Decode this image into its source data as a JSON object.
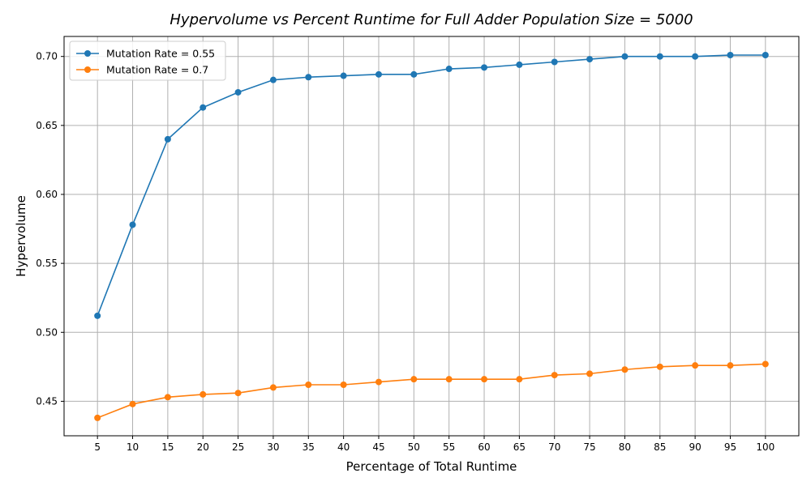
{
  "chart_data": {
    "type": "line",
    "title": "Hypervolume vs Percent Runtime for Full Adder Population Size = 5000",
    "xlabel": "Percentage of Total Runtime",
    "ylabel": "Hypervolume",
    "x": [
      5,
      10,
      15,
      20,
      25,
      30,
      35,
      40,
      45,
      50,
      55,
      60,
      65,
      70,
      75,
      80,
      85,
      90,
      95,
      100
    ],
    "x_tick_labels": [
      "5",
      "10",
      "15",
      "20",
      "25",
      "30",
      "35",
      "40",
      "45",
      "50",
      "55",
      "60",
      "65",
      "70",
      "75",
      "80",
      "85",
      "90",
      "95",
      "100"
    ],
    "y_ticks": [
      0.45,
      0.5,
      0.55,
      0.6,
      0.65,
      0.7
    ],
    "y_tick_labels": [
      "0.45",
      "0.50",
      "0.55",
      "0.60",
      "0.65",
      "0.70"
    ],
    "xlim": [
      0.25,
      104.75
    ],
    "ylim": [
      0.425,
      0.7145
    ],
    "grid": true,
    "legend_position": "top-left",
    "series": [
      {
        "name": "Mutation Rate = 0.55",
        "color": "#1f77b4",
        "marker": "circle",
        "values": [
          0.512,
          0.578,
          0.64,
          0.663,
          0.674,
          0.683,
          0.685,
          0.686,
          0.687,
          0.687,
          0.691,
          0.692,
          0.694,
          0.696,
          0.698,
          0.7,
          0.7,
          0.7,
          0.701,
          0.701
        ]
      },
      {
        "name": "Mutation Rate = 0.7",
        "color": "#ff7f0e",
        "marker": "circle",
        "values": [
          0.438,
          0.448,
          0.453,
          0.455,
          0.456,
          0.46,
          0.462,
          0.462,
          0.464,
          0.466,
          0.466,
          0.466,
          0.466,
          0.469,
          0.47,
          0.473,
          0.475,
          0.476,
          0.476,
          0.477
        ]
      }
    ]
  }
}
